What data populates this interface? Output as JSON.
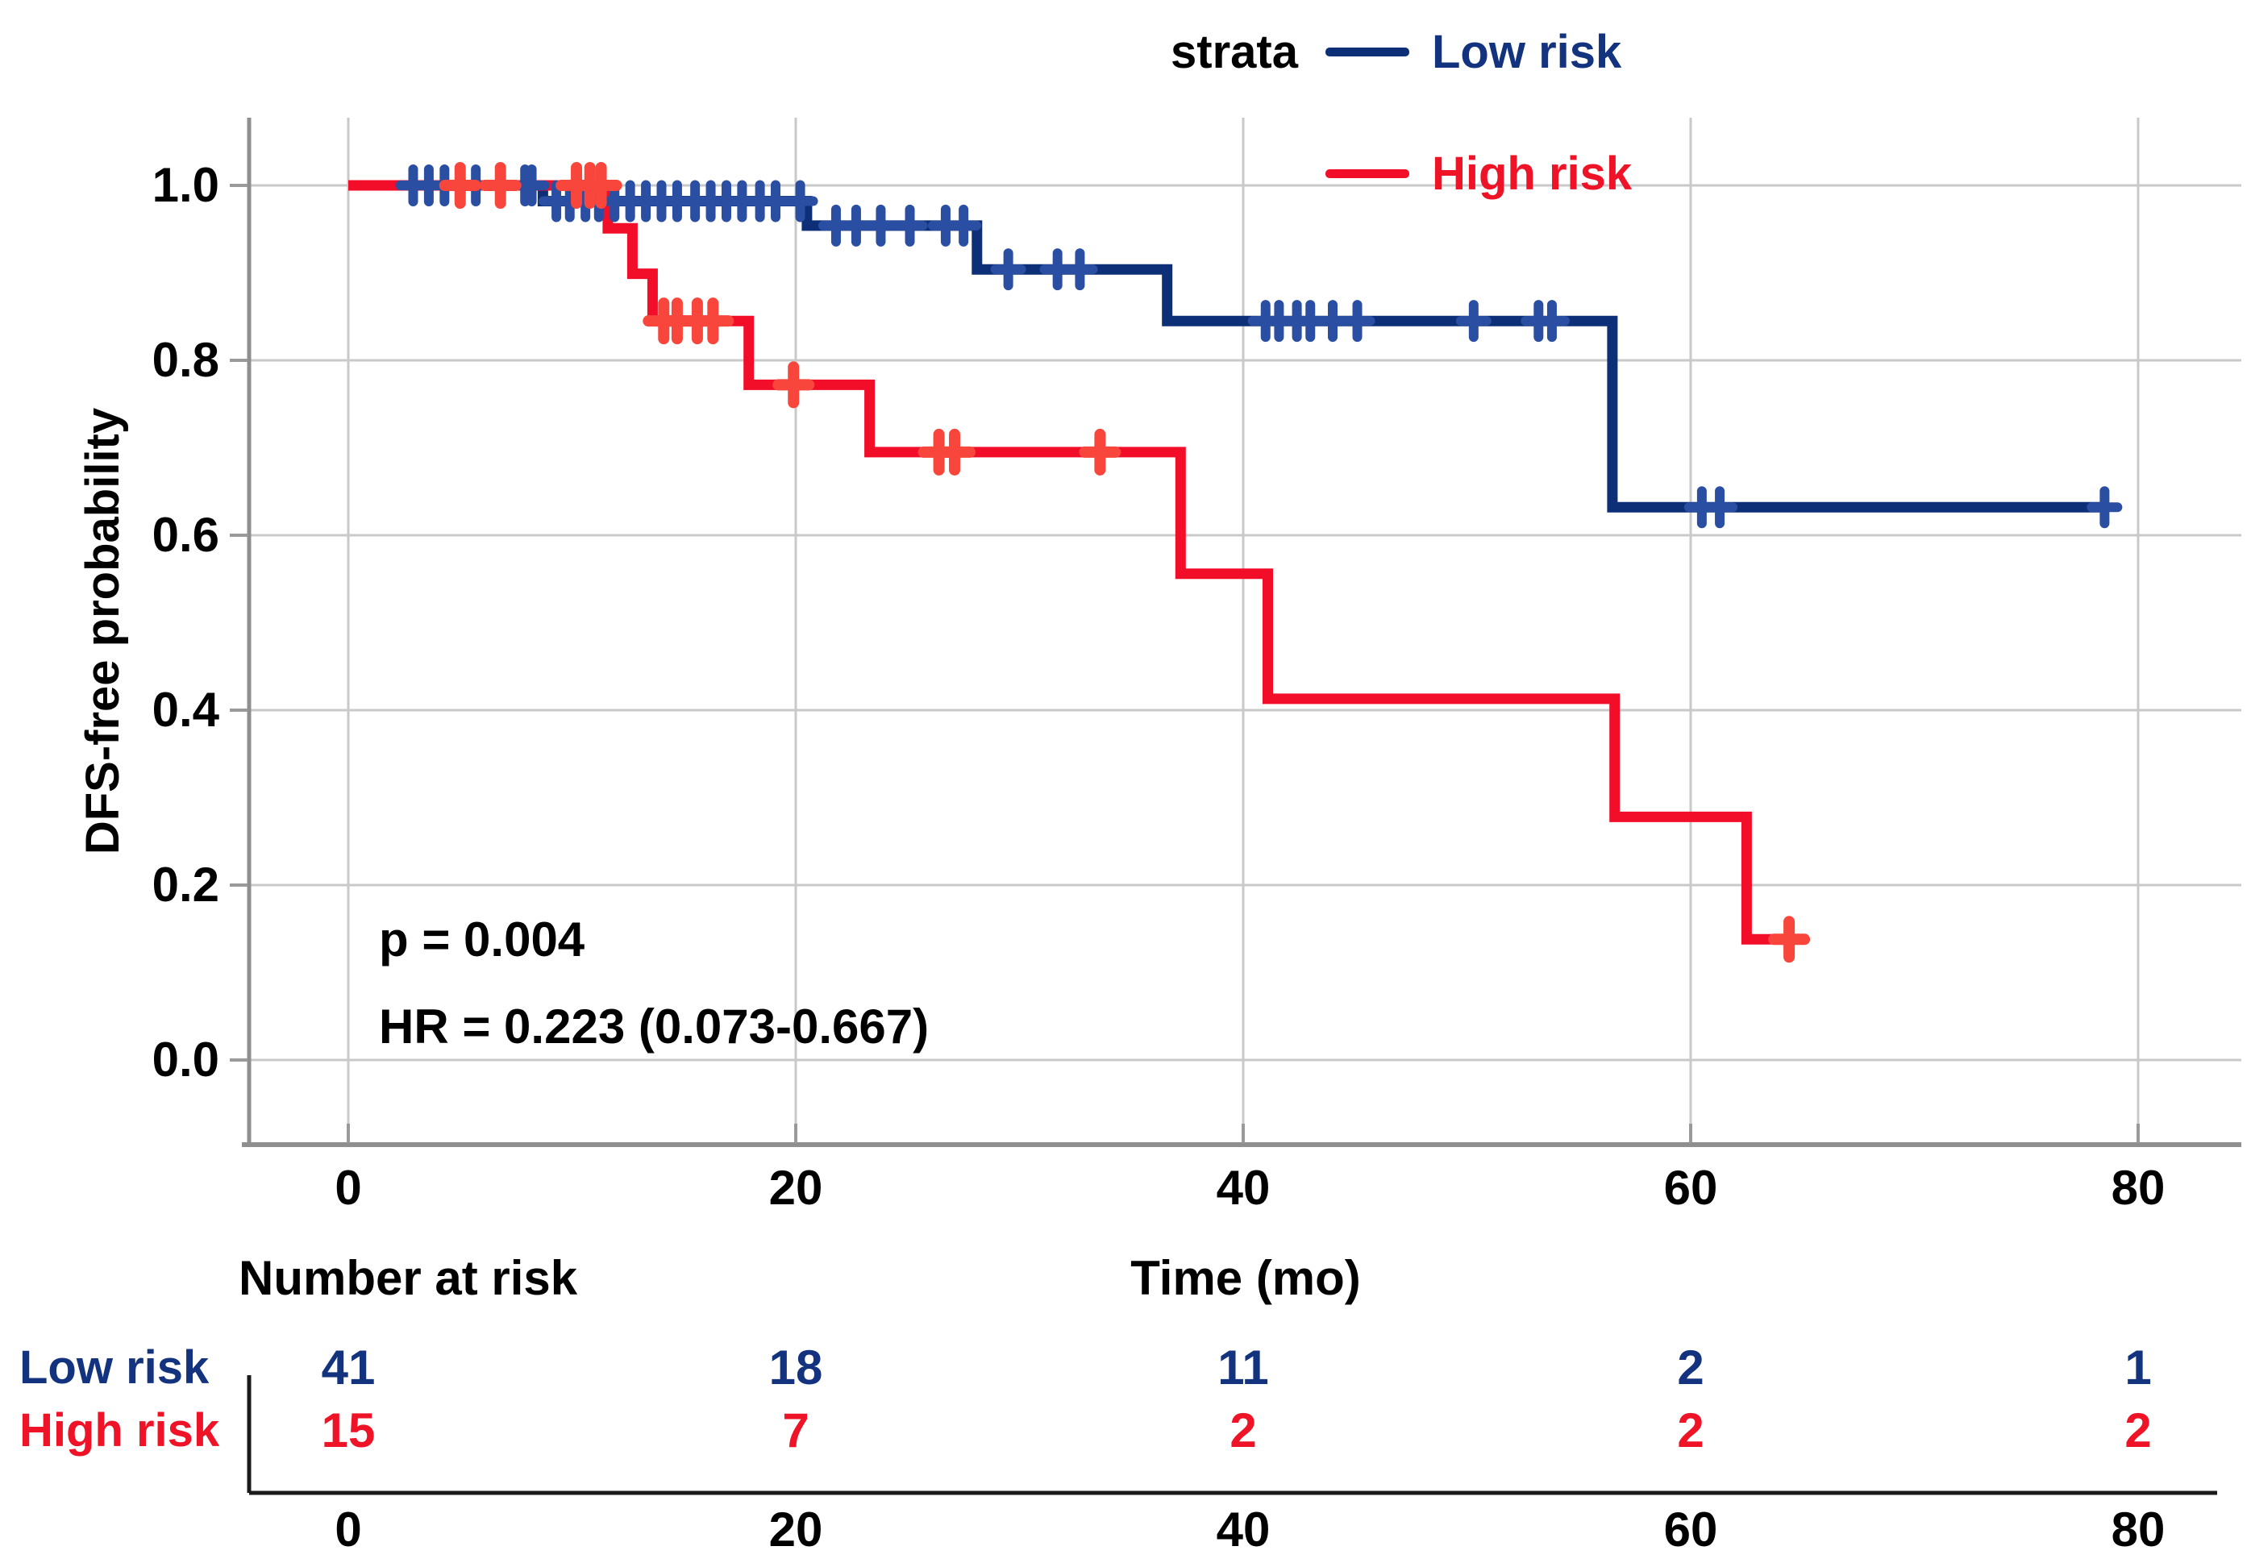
{
  "figure": {
    "background": "#ffffff"
  },
  "legend": {
    "title": "strata",
    "items": [
      {
        "label": "Low risk",
        "text_color": "#13337f",
        "line_color": "#0d2f77"
      },
      {
        "label": "High risk",
        "text_color": "#ee1326",
        "line_color": "#f20d28"
      }
    ]
  },
  "y_axis": {
    "title": "DFS-free probability",
    "tick_labels": [
      "1.0",
      "0.8",
      "0.6",
      "0.4",
      "0.2",
      "0.0"
    ],
    "tick_values": [
      1.0,
      0.8,
      0.6,
      0.4,
      0.2,
      0.0
    ]
  },
  "x_axis": {
    "title": "Time (mo)",
    "tick_labels": [
      "0",
      "20",
      "40",
      "60",
      "80"
    ],
    "tick_values": [
      0,
      20,
      40,
      60,
      80
    ]
  },
  "annotations": {
    "p_value": "p = 0.004",
    "hazard_ratio": "HR = 0.223 (0.073-0.667)"
  },
  "risk_table": {
    "header": "Number at risk",
    "axis_label": "Time (mo)",
    "tick_labels": [
      "0",
      "20",
      "40",
      "60",
      "80"
    ],
    "rows": [
      {
        "label": "Low risk",
        "text_color": "#13337f",
        "values": [
          "41",
          "18",
          "11",
          "2",
          "1"
        ]
      },
      {
        "label": "High risk",
        "text_color": "#ee1326",
        "values": [
          "15",
          "7",
          "2",
          "2",
          "2"
        ]
      }
    ]
  },
  "chart_data": {
    "type": "line",
    "subtype": "kaplan-meier-step",
    "title": "",
    "xlabel": "Time (mo)",
    "ylabel": "DFS-free probability",
    "xlim": [
      0,
      80
    ],
    "ylim": [
      0.0,
      1.0
    ],
    "x_ticks": [
      0,
      20,
      40,
      60,
      80
    ],
    "y_ticks": [
      1.0,
      0.8,
      0.6,
      0.4,
      0.2,
      0.0
    ],
    "grid": true,
    "legend_position": "top",
    "legend_title": "strata",
    "annotations": [
      "p = 0.004",
      "HR = 0.223 (0.073-0.667)"
    ],
    "series": [
      {
        "name": "Low risk",
        "color": "#0d2f77",
        "censor_color": "#2a4fa2",
        "steps": [
          [
            0,
            1.0
          ],
          [
            8.7,
            1.0
          ],
          [
            8.7,
            0.982
          ],
          [
            20.5,
            0.982
          ],
          [
            20.5,
            0.954
          ],
          [
            28.1,
            0.954
          ],
          [
            28.1,
            0.904
          ],
          [
            36.6,
            0.904
          ],
          [
            36.6,
            0.845
          ],
          [
            56.5,
            0.845
          ],
          [
            56.5,
            0.632
          ],
          [
            78.6,
            0.632
          ]
        ],
        "censor_marks": [
          [
            2.9,
            1.0
          ],
          [
            3.6,
            1.0
          ],
          [
            4.3,
            1.0
          ],
          [
            5.7,
            1.0
          ],
          [
            7.9,
            1.0
          ],
          [
            8.2,
            1.0
          ],
          [
            9.3,
            0.982
          ],
          [
            9.9,
            0.982
          ],
          [
            10.6,
            0.982
          ],
          [
            11.2,
            0.982
          ],
          [
            11.9,
            0.982
          ],
          [
            12.6,
            0.982
          ],
          [
            13.3,
            0.982
          ],
          [
            14.0,
            0.982
          ],
          [
            14.7,
            0.982
          ],
          [
            15.5,
            0.982
          ],
          [
            16.2,
            0.982
          ],
          [
            16.9,
            0.982
          ],
          [
            17.6,
            0.982
          ],
          [
            18.4,
            0.982
          ],
          [
            19.1,
            0.982
          ],
          [
            20.2,
            0.982
          ],
          [
            21.8,
            0.954
          ],
          [
            22.7,
            0.954
          ],
          [
            23.8,
            0.954
          ],
          [
            25.1,
            0.954
          ],
          [
            26.7,
            0.954
          ],
          [
            27.5,
            0.954
          ],
          [
            29.5,
            0.904
          ],
          [
            31.7,
            0.904
          ],
          [
            32.7,
            0.904
          ],
          [
            41.0,
            0.845
          ],
          [
            41.6,
            0.845
          ],
          [
            42.4,
            0.845
          ],
          [
            43.0,
            0.845
          ],
          [
            44.0,
            0.845
          ],
          [
            45.1,
            0.845
          ],
          [
            50.3,
            0.845
          ],
          [
            53.2,
            0.845
          ],
          [
            53.8,
            0.845
          ],
          [
            60.5,
            0.632
          ],
          [
            61.3,
            0.632
          ],
          [
            78.5,
            0.632
          ]
        ]
      },
      {
        "name": "High risk",
        "color": "#f20d28",
        "censor_color": "#f9463c",
        "steps": [
          [
            0,
            1.0
          ],
          [
            11.6,
            1.0
          ],
          [
            11.6,
            0.951
          ],
          [
            12.7,
            0.951
          ],
          [
            12.7,
            0.899
          ],
          [
            13.6,
            0.899
          ],
          [
            13.6,
            0.845
          ],
          [
            17.9,
            0.845
          ],
          [
            17.9,
            0.772
          ],
          [
            23.3,
            0.772
          ],
          [
            23.3,
            0.695
          ],
          [
            37.2,
            0.695
          ],
          [
            37.2,
            0.556
          ],
          [
            41.1,
            0.556
          ],
          [
            41.1,
            0.413
          ],
          [
            56.6,
            0.413
          ],
          [
            56.6,
            0.278
          ],
          [
            62.5,
            0.278
          ],
          [
            62.5,
            0.138
          ],
          [
            64.8,
            0.138
          ]
        ],
        "censor_marks": [
          [
            5.0,
            1.0
          ],
          [
            6.8,
            1.0
          ],
          [
            10.2,
            1.0
          ],
          [
            10.8,
            1.0
          ],
          [
            11.3,
            1.0
          ],
          [
            14.1,
            0.845
          ],
          [
            14.7,
            0.845
          ],
          [
            15.6,
            0.845
          ],
          [
            16.3,
            0.845
          ],
          [
            19.9,
            0.772
          ],
          [
            26.4,
            0.695
          ],
          [
            27.1,
            0.695
          ],
          [
            33.6,
            0.695
          ],
          [
            64.4,
            0.138
          ]
        ]
      }
    ],
    "number_at_risk": {
      "times": [
        0,
        20,
        40,
        60,
        80
      ],
      "low_risk": [
        41,
        18,
        11,
        2,
        1
      ],
      "high_risk": [
        15,
        7,
        2,
        2,
        2
      ]
    }
  }
}
